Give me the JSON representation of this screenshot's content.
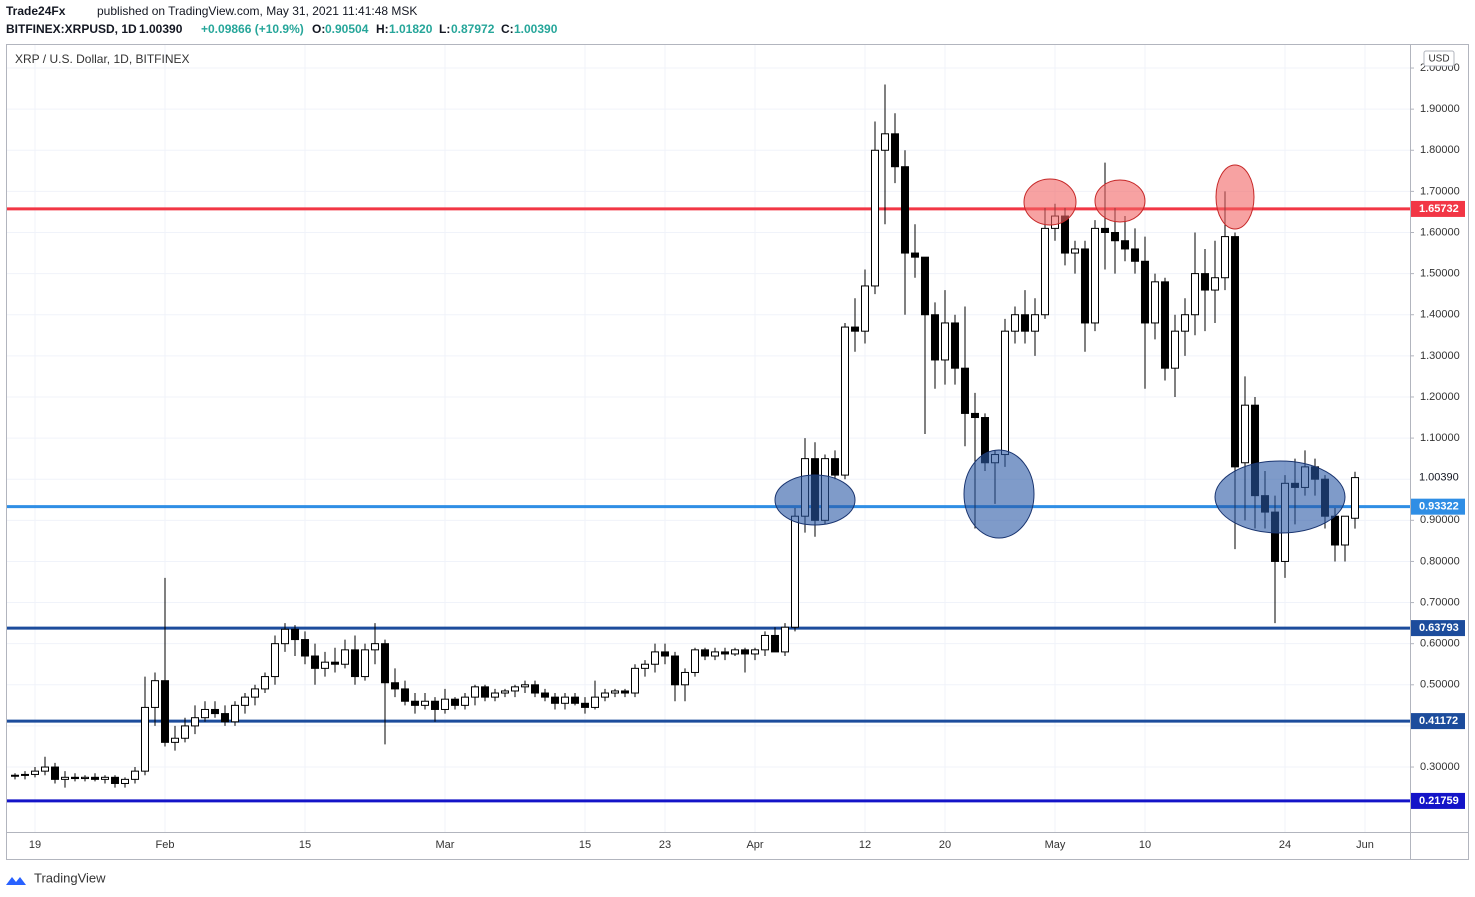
{
  "header": {
    "author": "Trade24Fx",
    "published": "published on TradingView.com, May 31, 2021 11:41:48 MSK",
    "symbol": "BITFINEX:XRPUSD, 1D",
    "last": "1.00390",
    "change": "+0.09866 (+10.9%)",
    "o_label": "O:",
    "o": "0.90504",
    "h_label": "H:",
    "h": "1.01820",
    "l_label": "L:",
    "l": "0.87972",
    "c_label": "C:",
    "c": "1.00390"
  },
  "footer": {
    "brand": "TradingView"
  },
  "chart_data": {
    "type": "candlestick",
    "title": "XRP / U.S. Dollar, 1D, BITFINEX",
    "currency": "USD",
    "up_color": "#ffffff",
    "down_color": "#000000",
    "wick_color": "#000000",
    "categories": [
      null,
      null,
      "19",
      null,
      null,
      null,
      null,
      null,
      null,
      null,
      null,
      null,
      null,
      null,
      null,
      "Feb",
      null,
      null,
      null,
      null,
      null,
      null,
      null,
      null,
      null,
      null,
      null,
      null,
      null,
      "15",
      null,
      null,
      null,
      null,
      null,
      null,
      null,
      null,
      null,
      null,
      null,
      null,
      null,
      "Mar",
      null,
      null,
      null,
      null,
      null,
      null,
      null,
      null,
      null,
      null,
      null,
      null,
      null,
      "15",
      null,
      null,
      null,
      null,
      null,
      null,
      null,
      "23",
      null,
      null,
      null,
      null,
      null,
      null,
      null,
      null,
      "Apr",
      null,
      null,
      null,
      null,
      null,
      null,
      null,
      null,
      null,
      null,
      "12",
      null,
      null,
      null,
      null,
      null,
      null,
      null,
      "20",
      null,
      null,
      null,
      null,
      null,
      null,
      null,
      null,
      null,
      null,
      "May",
      null,
      null,
      null,
      null,
      null,
      null,
      null,
      null,
      "10",
      null,
      null,
      null,
      null,
      null,
      null,
      null,
      null,
      null,
      null,
      null,
      null,
      null,
      "24",
      null,
      null,
      null,
      null,
      null,
      null,
      null,
      "Jun"
    ],
    "ohlc": [
      [
        0.278,
        0.285,
        0.27,
        0.28
      ],
      [
        0.28,
        0.29,
        0.27,
        0.282
      ],
      [
        0.282,
        0.3,
        0.275,
        0.29
      ],
      [
        0.29,
        0.325,
        0.28,
        0.3
      ],
      [
        0.3,
        0.31,
        0.26,
        0.27
      ],
      [
        0.27,
        0.29,
        0.25,
        0.275
      ],
      [
        0.275,
        0.285,
        0.265,
        0.272
      ],
      [
        0.272,
        0.28,
        0.265,
        0.275
      ],
      [
        0.275,
        0.285,
        0.265,
        0.27
      ],
      [
        0.27,
        0.28,
        0.26,
        0.275
      ],
      [
        0.275,
        0.28,
        0.25,
        0.26
      ],
      [
        0.26,
        0.275,
        0.25,
        0.27
      ],
      [
        0.27,
        0.3,
        0.26,
        0.29
      ],
      [
        0.29,
        0.52,
        0.28,
        0.445
      ],
      [
        0.445,
        0.53,
        0.4,
        0.51
      ],
      [
        0.51,
        0.76,
        0.35,
        0.36
      ],
      [
        0.36,
        0.4,
        0.34,
        0.37
      ],
      [
        0.37,
        0.42,
        0.36,
        0.4
      ],
      [
        0.4,
        0.45,
        0.38,
        0.42
      ],
      [
        0.42,
        0.46,
        0.41,
        0.44
      ],
      [
        0.44,
        0.46,
        0.42,
        0.43
      ],
      [
        0.43,
        0.45,
        0.4,
        0.41
      ],
      [
        0.41,
        0.46,
        0.4,
        0.45
      ],
      [
        0.45,
        0.48,
        0.43,
        0.47
      ],
      [
        0.47,
        0.5,
        0.45,
        0.49
      ],
      [
        0.49,
        0.53,
        0.48,
        0.52
      ],
      [
        0.52,
        0.62,
        0.5,
        0.6
      ],
      [
        0.6,
        0.65,
        0.58,
        0.635
      ],
      [
        0.635,
        0.645,
        0.57,
        0.61
      ],
      [
        0.61,
        0.63,
        0.55,
        0.57
      ],
      [
        0.57,
        0.6,
        0.5,
        0.54
      ],
      [
        0.54,
        0.58,
        0.52,
        0.555
      ],
      [
        0.555,
        0.59,
        0.53,
        0.55
      ],
      [
        0.55,
        0.61,
        0.54,
        0.585
      ],
      [
        0.585,
        0.62,
        0.5,
        0.52
      ],
      [
        0.52,
        0.6,
        0.51,
        0.585
      ],
      [
        0.585,
        0.65,
        0.55,
        0.6
      ],
      [
        0.6,
        0.61,
        0.355,
        0.505
      ],
      [
        0.505,
        0.54,
        0.47,
        0.49
      ],
      [
        0.49,
        0.51,
        0.45,
        0.46
      ],
      [
        0.46,
        0.48,
        0.43,
        0.45
      ],
      [
        0.45,
        0.48,
        0.44,
        0.46
      ],
      [
        0.46,
        0.47,
        0.41,
        0.44
      ],
      [
        0.44,
        0.49,
        0.43,
        0.465
      ],
      [
        0.465,
        0.47,
        0.44,
        0.45
      ],
      [
        0.45,
        0.48,
        0.44,
        0.47
      ],
      [
        0.47,
        0.5,
        0.45,
        0.495
      ],
      [
        0.495,
        0.5,
        0.46,
        0.47
      ],
      [
        0.47,
        0.49,
        0.46,
        0.48
      ],
      [
        0.48,
        0.49,
        0.47,
        0.485
      ],
      [
        0.485,
        0.5,
        0.47,
        0.495
      ],
      [
        0.495,
        0.51,
        0.48,
        0.5
      ],
      [
        0.5,
        0.51,
        0.47,
        0.48
      ],
      [
        0.48,
        0.49,
        0.46,
        0.47
      ],
      [
        0.47,
        0.48,
        0.44,
        0.455
      ],
      [
        0.455,
        0.48,
        0.44,
        0.47
      ],
      [
        0.47,
        0.48,
        0.45,
        0.455
      ],
      [
        0.455,
        0.47,
        0.43,
        0.445
      ],
      [
        0.445,
        0.51,
        0.44,
        0.47
      ],
      [
        0.47,
        0.49,
        0.46,
        0.48
      ],
      [
        0.48,
        0.49,
        0.47,
        0.485
      ],
      [
        0.485,
        0.49,
        0.47,
        0.48
      ],
      [
        0.48,
        0.55,
        0.47,
        0.54
      ],
      [
        0.54,
        0.56,
        0.52,
        0.55
      ],
      [
        0.55,
        0.6,
        0.53,
        0.58
      ],
      [
        0.58,
        0.6,
        0.55,
        0.57
      ],
      [
        0.57,
        0.58,
        0.46,
        0.5
      ],
      [
        0.5,
        0.54,
        0.46,
        0.53
      ],
      [
        0.53,
        0.59,
        0.52,
        0.585
      ],
      [
        0.585,
        0.59,
        0.56,
        0.57
      ],
      [
        0.57,
        0.59,
        0.56,
        0.58
      ],
      [
        0.58,
        0.59,
        0.56,
        0.575
      ],
      [
        0.575,
        0.59,
        0.57,
        0.585
      ],
      [
        0.585,
        0.59,
        0.53,
        0.575
      ],
      [
        0.575,
        0.59,
        0.56,
        0.585
      ],
      [
        0.585,
        0.63,
        0.57,
        0.62
      ],
      [
        0.62,
        0.64,
        0.58,
        0.58
      ],
      [
        0.58,
        0.65,
        0.57,
        0.64
      ],
      [
        0.64,
        0.93,
        0.63,
        0.91
      ],
      [
        0.91,
        1.1,
        0.87,
        1.05
      ],
      [
        1.05,
        1.09,
        0.86,
        0.9
      ],
      [
        0.9,
        1.06,
        0.89,
        1.05
      ],
      [
        1.05,
        1.07,
        1.0,
        1.01
      ],
      [
        1.01,
        1.38,
        1.0,
        1.37
      ],
      [
        1.37,
        1.44,
        1.31,
        1.36
      ],
      [
        1.36,
        1.51,
        1.33,
        1.47
      ],
      [
        1.47,
        1.87,
        1.45,
        1.8
      ],
      [
        1.8,
        1.96,
        1.62,
        1.84
      ],
      [
        1.84,
        1.89,
        1.72,
        1.76
      ],
      [
        1.76,
        1.8,
        1.4,
        1.55
      ],
      [
        1.55,
        1.62,
        1.49,
        1.54
      ],
      [
        1.54,
        1.54,
        1.11,
        1.4
      ],
      [
        1.4,
        1.43,
        1.22,
        1.29
      ],
      [
        1.29,
        1.46,
        1.23,
        1.38
      ],
      [
        1.38,
        1.4,
        1.23,
        1.27
      ],
      [
        1.27,
        1.42,
        1.08,
        1.16
      ],
      [
        1.16,
        1.21,
        0.88,
        1.15
      ],
      [
        1.15,
        1.16,
        1.02,
        1.04
      ],
      [
        1.04,
        1.07,
        0.94,
        1.06
      ],
      [
        1.06,
        1.39,
        1.03,
        1.36
      ],
      [
        1.36,
        1.42,
        1.33,
        1.4
      ],
      [
        1.4,
        1.46,
        1.33,
        1.36
      ],
      [
        1.36,
        1.44,
        1.3,
        1.4
      ],
      [
        1.4,
        1.66,
        1.39,
        1.61
      ],
      [
        1.61,
        1.67,
        1.58,
        1.64
      ],
      [
        1.64,
        1.66,
        1.52,
        1.55
      ],
      [
        1.55,
        1.58,
        1.5,
        1.56
      ],
      [
        1.56,
        1.58,
        1.31,
        1.38
      ],
      [
        1.38,
        1.63,
        1.36,
        1.61
      ],
      [
        1.61,
        1.77,
        1.51,
        1.6
      ],
      [
        1.6,
        1.66,
        1.5,
        1.58
      ],
      [
        1.58,
        1.64,
        1.53,
        1.56
      ],
      [
        1.56,
        1.61,
        1.5,
        1.53
      ],
      [
        1.53,
        1.59,
        1.22,
        1.38
      ],
      [
        1.38,
        1.5,
        1.34,
        1.48
      ],
      [
        1.48,
        1.49,
        1.24,
        1.27
      ],
      [
        1.27,
        1.4,
        1.2,
        1.36
      ],
      [
        1.36,
        1.44,
        1.3,
        1.4
      ],
      [
        1.4,
        1.6,
        1.35,
        1.5
      ],
      [
        1.5,
        1.56,
        1.36,
        1.46
      ],
      [
        1.46,
        1.58,
        1.38,
        1.49
      ],
      [
        1.49,
        1.7,
        1.46,
        1.59
      ],
      [
        1.59,
        1.6,
        0.83,
        1.03
      ],
      [
        1.04,
        1.25,
        0.9,
        1.18
      ],
      [
        1.18,
        1.2,
        0.88,
        0.96
      ],
      [
        0.96,
        1.02,
        0.88,
        0.92
      ],
      [
        0.92,
        0.96,
        0.65,
        0.8
      ],
      [
        0.8,
        1.01,
        0.76,
        0.99
      ],
      [
        0.99,
        1.05,
        0.89,
        0.98
      ],
      [
        0.98,
        1.07,
        0.96,
        1.03
      ],
      [
        1.03,
        1.05,
        0.96,
        1.0
      ],
      [
        1.0,
        1.01,
        0.88,
        0.91
      ],
      [
        0.91,
        0.93,
        0.8,
        0.84
      ],
      [
        0.84,
        0.91,
        0.8,
        0.91
      ],
      [
        0.90504,
        1.0182,
        0.87972,
        1.0039
      ],
      null
    ],
    "ylim": [
      0.142,
      2.056
    ],
    "yticks": [
      {
        "value": 0.3,
        "label": "0.30000"
      },
      {
        "value": 0.4,
        "label": "0.40000"
      },
      {
        "value": 0.5,
        "label": "0.50000"
      },
      {
        "value": 0.6,
        "label": "0.60000"
      },
      {
        "value": 0.7,
        "label": "0.70000"
      },
      {
        "value": 0.8,
        "label": "0.80000"
      },
      {
        "value": 0.9,
        "label": "0.90000"
      },
      {
        "value": 1.0,
        "label": "1.00000"
      },
      {
        "value": 1.1,
        "label": "1.10000"
      },
      {
        "value": 1.2,
        "label": "1.20000"
      },
      {
        "value": 1.3,
        "label": "1.30000"
      },
      {
        "value": 1.4,
        "label": "1.40000"
      },
      {
        "value": 1.5,
        "label": "1.50000"
      },
      {
        "value": 1.6,
        "label": "1.60000"
      },
      {
        "value": 1.7,
        "label": "1.70000"
      },
      {
        "value": 1.8,
        "label": "1.80000"
      },
      {
        "value": 1.9,
        "label": "1.90000"
      },
      {
        "value": 2.0,
        "label": "2.00000"
      }
    ],
    "grid": true,
    "last_label": {
      "value": 1.0039,
      "label": "1.00390"
    },
    "levels": [
      {
        "value": 1.65732,
        "color": "#f23645"
      },
      {
        "value": 0.93322,
        "color": "#2f8ee5"
      },
      {
        "value": 0.63793,
        "color": "#1c4c9c"
      },
      {
        "value": 0.41172,
        "color": "#1c4c9c"
      },
      {
        "value": 0.21759,
        "color": "#1414c8"
      }
    ]
  }
}
